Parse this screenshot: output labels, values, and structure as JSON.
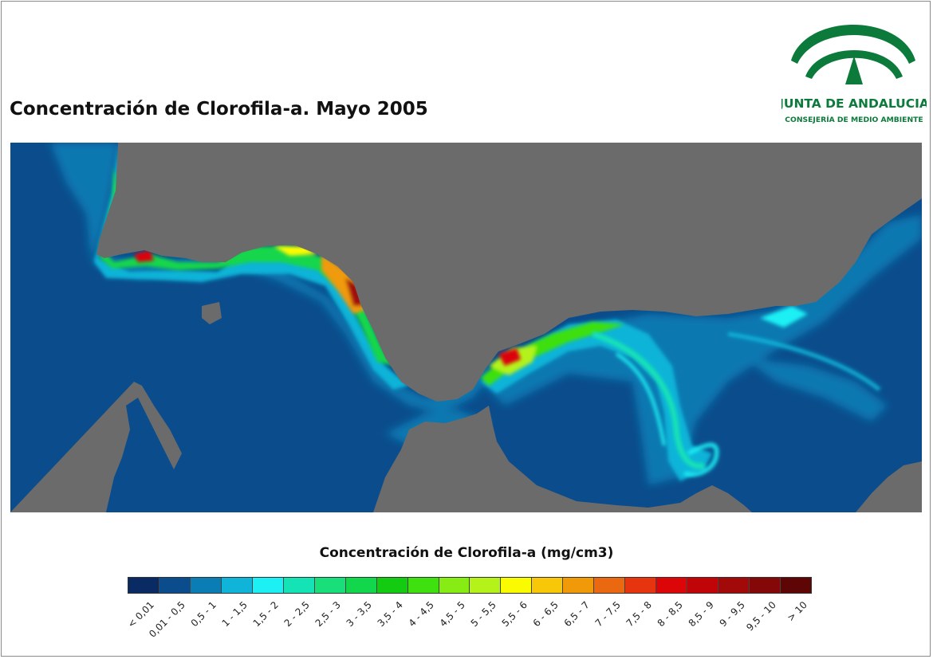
{
  "title": "Concentración de Clorofila-a. Mayo 2005",
  "logo": {
    "name": "JUNTA DE ANDALUCIA",
    "subtitle": "CONSEJERÍA DE MEDIO AMBIENTE",
    "color": "#0b7a3a"
  },
  "map": {
    "land_color": "#6b6b6b",
    "sea_base_color": "#0b4d8c"
  },
  "legend": {
    "title": "Concentración de Clorofila-a (mg/cm3)",
    "classes": [
      {
        "label": "< 0,01",
        "color": "#0a2a63"
      },
      {
        "label": "0,01 - 0,5",
        "color": "#0b4d8c"
      },
      {
        "label": "0,5 - 1",
        "color": "#0a7db5"
      },
      {
        "label": "1 - 1,5",
        "color": "#10b4d8"
      },
      {
        "label": "1,5 - 2",
        "color": "#1cf0f4"
      },
      {
        "label": "2 - 2,5",
        "color": "#14e3b6"
      },
      {
        "label": "2,5 - 3",
        "color": "#18df7a"
      },
      {
        "label": "3 - 3,5",
        "color": "#12d64c"
      },
      {
        "label": "3,5 - 4",
        "color": "#13cc11"
      },
      {
        "label": "4 - 4,5",
        "color": "#3ee00f"
      },
      {
        "label": "4,5 - 5",
        "color": "#86ec14"
      },
      {
        "label": "5 - 5,5",
        "color": "#b4f21a"
      },
      {
        "label": "5,5 - 6",
        "color": "#fbfb00"
      },
      {
        "label": "6 - 6,5",
        "color": "#f7c708"
      },
      {
        "label": "6,5 - 7",
        "color": "#f09a0a"
      },
      {
        "label": "7 - 7,5",
        "color": "#ea6810"
      },
      {
        "label": "7,5 - 8",
        "color": "#e6340e"
      },
      {
        "label": "8 - 8,5",
        "color": "#dc0507"
      },
      {
        "label": "8,5 - 9",
        "color": "#c00408"
      },
      {
        "label": "9 - 9,5",
        "color": "#a20a0a"
      },
      {
        "label": "9,5 - 10",
        "color": "#850808"
      },
      {
        "label": "> 10",
        "color": "#5e0505"
      }
    ]
  }
}
